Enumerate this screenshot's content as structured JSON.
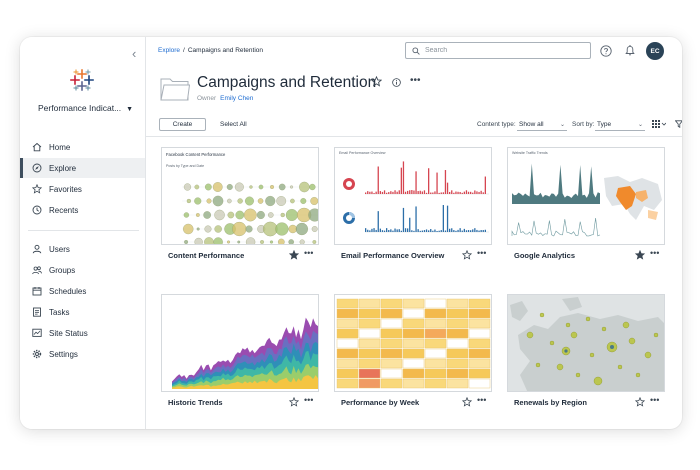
{
  "sidebar": {
    "site_name": "Performance Indicat...",
    "items": [
      {
        "label": "Home",
        "icon": "home-icon"
      },
      {
        "label": "Explore",
        "icon": "compass-icon",
        "active": true
      },
      {
        "label": "Favorites",
        "icon": "star-icon"
      },
      {
        "label": "Recents",
        "icon": "clock-icon"
      },
      {
        "label": "Users",
        "icon": "user-icon"
      },
      {
        "label": "Groups",
        "icon": "group-icon"
      },
      {
        "label": "Schedules",
        "icon": "calendar-icon"
      },
      {
        "label": "Tasks",
        "icon": "tasks-icon"
      },
      {
        "label": "Site Status",
        "icon": "status-icon"
      },
      {
        "label": "Settings",
        "icon": "gear-icon"
      }
    ]
  },
  "breadcrumb": {
    "root": "Explore",
    "separator": "/",
    "current": "Campaigns and Retention"
  },
  "search": {
    "placeholder": "Search"
  },
  "user": {
    "initials": "EC"
  },
  "project": {
    "title": "Campaigns and Retention",
    "owner_label": "Owner",
    "owner_name": "Emily Chen"
  },
  "toolbar": {
    "create_label": "Create",
    "select_all_label": "Select All",
    "content_type_label": "Content type:",
    "content_type_value": "Show all",
    "sort_label": "Sort by:",
    "sort_value": "Type"
  },
  "cards": [
    {
      "title": "Content Performance",
      "favorited": true,
      "thumb_title": "Facebook Content Performance",
      "thumb_subtitle": "Posts by Type and Date"
    },
    {
      "title": "Email Performance Overview",
      "favorited": false,
      "thumb_title": "Email Performance Overview"
    },
    {
      "title": "Google Analytics",
      "favorited": true,
      "thumb_title": "Website Traffic Trends"
    },
    {
      "title": "Historic Trends",
      "favorited": false
    },
    {
      "title": "Performance by Week",
      "favorited": false
    },
    {
      "title": "Renewals by Region",
      "favorited": false
    }
  ],
  "colors": {
    "accent": "#1f6dd1",
    "avatar": "#2a4357",
    "active_nav": "#eef0f2"
  }
}
